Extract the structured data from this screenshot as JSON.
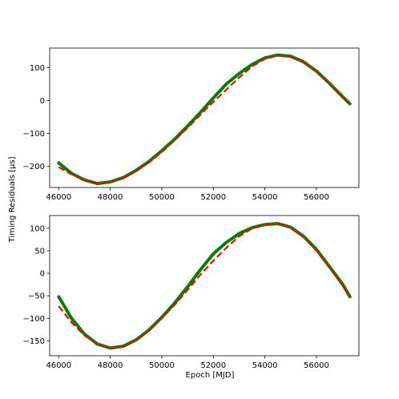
{
  "figure": {
    "ylabel": "Timing Residuals [$\\mu$s]",
    "ylabel_display": "Timing Residuals [μs]",
    "xlabel": "Epoch [MJD]"
  },
  "colors": {
    "data_line": "#008000",
    "fit_line": "#ff0000"
  },
  "chart_data": [
    {
      "type": "line",
      "xlim": [
        45650,
        57650
      ],
      "ylim": [
        -265,
        160
      ],
      "xticks": [
        46000,
        48000,
        50000,
        52000,
        54000,
        56000
      ],
      "xtick_labels": [
        "46000",
        "48000",
        "50000",
        "52000",
        "54000",
        "56000"
      ],
      "yticks": [
        -200,
        -100,
        0,
        100
      ],
      "ytick_labels": [
        "−200",
        "−100",
        "0",
        "100"
      ],
      "series": [
        {
          "role": "fit",
          "style": "dashed",
          "color": "#ff0000",
          "x": [
            46000,
            46500,
            47000,
            47500,
            48000,
            48500,
            49000,
            49500,
            50000,
            50500,
            51000,
            51500,
            52000,
            52500,
            53000,
            53500,
            54000,
            54500,
            55000,
            55500,
            56000,
            56500,
            57000,
            57300
          ],
          "y": [
            -203,
            -225,
            -243,
            -252,
            -250,
            -236,
            -214,
            -189,
            -157,
            -121,
            -83,
            -43,
            -4,
            33,
            70,
            104,
            127,
            137,
            133,
            117,
            88,
            51,
            12,
            -10
          ]
        },
        {
          "role": "data",
          "style": "solid",
          "color": "#008000",
          "x": [
            46000,
            46500,
            47000,
            47500,
            48000,
            48500,
            49000,
            49500,
            50000,
            50500,
            51000,
            51500,
            52000,
            52500,
            53000,
            53500,
            54000,
            54500,
            55000,
            55500,
            56000,
            56500,
            57000,
            57300
          ],
          "y": [
            -190,
            -222,
            -242,
            -253,
            -248,
            -235,
            -213,
            -186,
            -153,
            -118,
            -78,
            -36,
            8,
            50,
            82,
            110,
            130,
            139,
            135,
            118,
            90,
            53,
            13,
            -10
          ]
        }
      ]
    },
    {
      "type": "line",
      "xlim": [
        45650,
        57650
      ],
      "ylim": [
        -183,
        128
      ],
      "xticks": [
        46000,
        48000,
        50000,
        52000,
        54000,
        56000
      ],
      "xtick_labels": [
        "46000",
        "48000",
        "50000",
        "52000",
        "54000",
        "56000"
      ],
      "yticks": [
        -150,
        -100,
        -50,
        0,
        50,
        100
      ],
      "ytick_labels": [
        "−150",
        "−100",
        "−50",
        "0",
        "50",
        "100"
      ],
      "series": [
        {
          "role": "fit",
          "style": "dashed",
          "color": "#ff0000",
          "x": [
            46000,
            46500,
            47000,
            47500,
            48000,
            48500,
            49000,
            49500,
            50000,
            50500,
            51000,
            51500,
            52000,
            52500,
            53000,
            53500,
            54000,
            54500,
            55000,
            55500,
            56000,
            56500,
            57000,
            57300
          ],
          "y": [
            -73,
            -109,
            -138,
            -157,
            -165,
            -162,
            -148,
            -127,
            -100,
            -70,
            -37,
            -3,
            28,
            56,
            82,
            99,
            107,
            110,
            100,
            80,
            50,
            13,
            -25,
            -50
          ]
        },
        {
          "role": "data",
          "style": "solid",
          "color": "#008000",
          "x": [
            46000,
            46500,
            47000,
            47500,
            48000,
            48500,
            49000,
            49500,
            50000,
            50500,
            51000,
            51500,
            52000,
            52500,
            53000,
            53500,
            54000,
            54500,
            55000,
            55500,
            56000,
            56500,
            57000,
            57300
          ],
          "y": [
            -52,
            -100,
            -135,
            -157,
            -166,
            -162,
            -148,
            -126,
            -98,
            -66,
            -30,
            8,
            43,
            68,
            88,
            101,
            108,
            110,
            102,
            82,
            53,
            15,
            -23,
            -52
          ]
        }
      ]
    }
  ]
}
